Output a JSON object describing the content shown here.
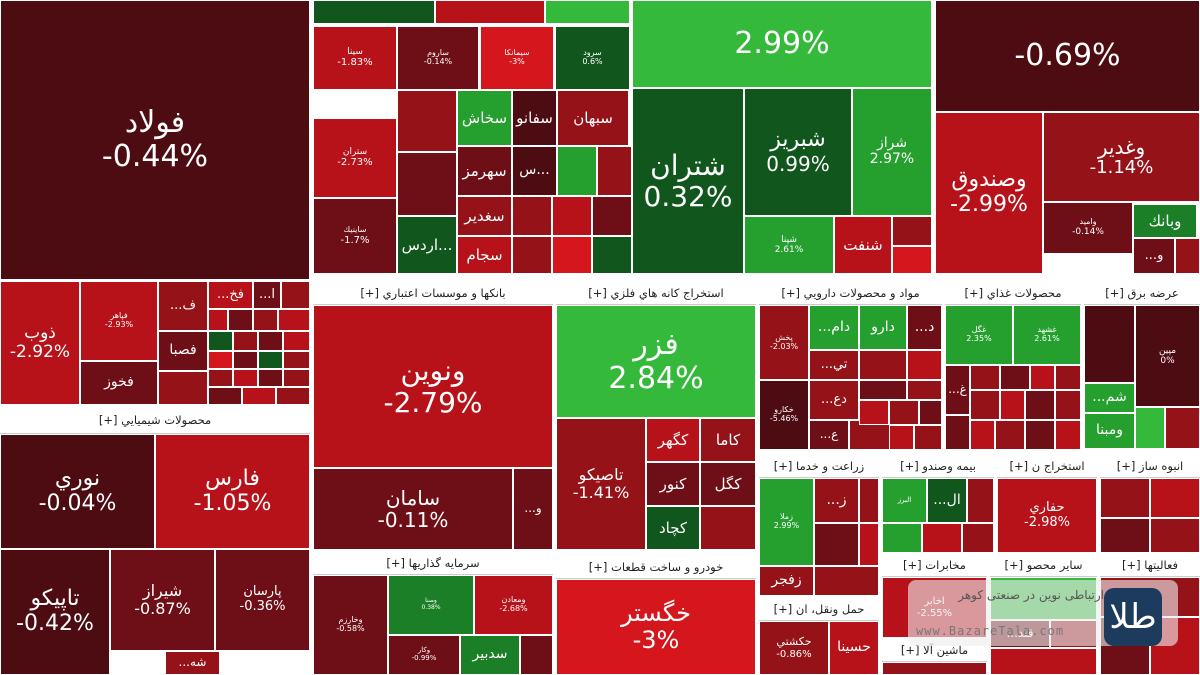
{
  "colors": {
    "DR": "#4d0c12",
    "R1": "#6e0f17",
    "R2": "#951318",
    "R3": "#b7121a",
    "R4": "#d6161d",
    "G1": "#10561d",
    "G2": "#1b7f27",
    "G3": "#25a02f",
    "G4": "#34b93a",
    "W": "#ffffff"
  },
  "chart_data": {
    "type": "treemap",
    "title": "",
    "sectors": [
      {
        "label": "محصولات شيميايي [+]"
      },
      {
        "label": "بانكها و موسسات اعتباري [+]"
      },
      {
        "label": "استخراج كانه هاي فلزي [+]"
      },
      {
        "label": "مواد و محصولات دارويي [+]"
      },
      {
        "label": "محصولات غذاي [+]"
      },
      {
        "label": "عرضه برق [+]"
      },
      {
        "label": "زراعت و خدما [+]"
      },
      {
        "label": "بيمه وصندو [+]"
      },
      {
        "label": "استخراج ن [+]"
      },
      {
        "label": "انبوه ساز [+]"
      },
      {
        "label": "سرمايه گذاريها [+]"
      },
      {
        "label": "خودرو و ساخت قطعات [+]"
      },
      {
        "label": "حمل ونقل، ان [+]"
      },
      {
        "label": "مخابرات [+]"
      },
      {
        "label": "ساير محصو [+]"
      },
      {
        "label": "فعاليتها [+]"
      },
      {
        "label": "ماشين آلا [+]"
      }
    ],
    "tiles": [
      {
        "name": "فولاد",
        "change": "-0.44%",
        "value": -0.44
      },
      {
        "name": "",
        "change": "2.99%",
        "value": 2.99
      },
      {
        "name": "",
        "change": "-0.69%",
        "value": -0.69
      },
      {
        "name": "سينا",
        "change": "-1.83%",
        "value": -1.83
      },
      {
        "name": "ساروم",
        "change": "-0.14%",
        "value": -0.14
      },
      {
        "name": "سيمانكا",
        "change": "-3%",
        "value": -3
      },
      {
        "name": "سرود",
        "change": "0.6%",
        "value": 0.6
      },
      {
        "name": "سخاش",
        "change": "",
        "value": null
      },
      {
        "name": "سفانو",
        "change": "",
        "value": null
      },
      {
        "name": "سبهان",
        "change": "",
        "value": null
      },
      {
        "name": "ستران",
        "change": "-2.73%",
        "value": -2.73
      },
      {
        "name": "سهرمز",
        "change": "",
        "value": null
      },
      {
        "name": "س...",
        "change": "",
        "value": null
      },
      {
        "name": "سغدير",
        "change": "",
        "value": null
      },
      {
        "name": "ساينيك",
        "change": "-1.7%",
        "value": -1.7
      },
      {
        "name": "اردس...",
        "change": "",
        "value": null
      },
      {
        "name": "سجام",
        "change": "",
        "value": null
      },
      {
        "name": "شتران",
        "change": "0.32%",
        "value": 0.32
      },
      {
        "name": "شبريز",
        "change": "0.99%",
        "value": 0.99
      },
      {
        "name": "شراز",
        "change": "2.97%",
        "value": 2.97
      },
      {
        "name": "شپنا",
        "change": "2.61%",
        "value": 2.61
      },
      {
        "name": "شنفت",
        "change": "",
        "value": null
      },
      {
        "name": "وصندوق",
        "change": "-2.99%",
        "value": -2.99
      },
      {
        "name": "وغدير",
        "change": "-1.14%",
        "value": -1.14
      },
      {
        "name": "وامید",
        "change": "-0.14%",
        "value": -0.14
      },
      {
        "name": "وبانك",
        "change": "",
        "value": null
      },
      {
        "name": "...و",
        "change": "",
        "value": null
      },
      {
        "name": "ذوب",
        "change": "-2.92%",
        "value": -2.92
      },
      {
        "name": "فپاهر",
        "change": "-2.93%",
        "value": -2.93
      },
      {
        "name": "...ف",
        "change": "",
        "value": null
      },
      {
        "name": "...فخ",
        "change": "",
        "value": null
      },
      {
        "name": "...ا",
        "change": "",
        "value": null
      },
      {
        "name": "فصبا",
        "change": "",
        "value": null
      },
      {
        "name": "فخوز",
        "change": "",
        "value": null
      },
      {
        "name": "نوري",
        "change": "-0.04%",
        "value": -0.04
      },
      {
        "name": "فارس",
        "change": "-1.05%",
        "value": -1.05
      },
      {
        "name": "تاپيكو",
        "change": "-0.42%",
        "value": -0.42
      },
      {
        "name": "شيراز",
        "change": "-0.87%",
        "value": -0.87
      },
      {
        "name": "پارسان",
        "change": "-0.36%",
        "value": -0.36
      },
      {
        "name": "...شه",
        "change": "",
        "value": null
      },
      {
        "name": "ونوين",
        "change": "-2.79%",
        "value": -2.79
      },
      {
        "name": "سامان",
        "change": "-0.11%",
        "value": -0.11
      },
      {
        "name": "...و",
        "change": "",
        "value": null
      },
      {
        "name": "فزر",
        "change": "2.84%",
        "value": 2.84
      },
      {
        "name": "تاصيكو",
        "change": "-1.41%",
        "value": -1.41
      },
      {
        "name": "كگهر",
        "change": "",
        "value": null
      },
      {
        "name": "كاما",
        "change": "",
        "value": null
      },
      {
        "name": "كنور",
        "change": "",
        "value": null
      },
      {
        "name": "كگل",
        "change": "",
        "value": null
      },
      {
        "name": "كچاد",
        "change": "",
        "value": null
      },
      {
        "name": "پخش",
        "change": "-2.03%",
        "value": -2.03
      },
      {
        "name": "...دام",
        "change": "",
        "value": null
      },
      {
        "name": "دارو",
        "change": "",
        "value": null
      },
      {
        "name": "...د",
        "change": "",
        "value": null
      },
      {
        "name": "...تي",
        "change": "",
        "value": null
      },
      {
        "name": "...دع",
        "change": "",
        "value": null
      },
      {
        "name": "...ع",
        "change": "",
        "value": null
      },
      {
        "name": "خكارو",
        "change": "-5.46%",
        "value": -5.46
      },
      {
        "name": "غگل",
        "change": "2.35%",
        "value": 2.35
      },
      {
        "name": "غشهد",
        "change": "2.61%",
        "value": 2.61
      },
      {
        "name": "...غ",
        "change": "",
        "value": null
      },
      {
        "name": "مپين",
        "change": "0%",
        "value": 0
      },
      {
        "name": "...شم",
        "change": "",
        "value": null
      },
      {
        "name": "ومبنا",
        "change": "",
        "value": null
      },
      {
        "name": "زملا",
        "change": "2.99%",
        "value": 2.99
      },
      {
        "name": "...ز",
        "change": "",
        "value": null
      },
      {
        "name": "زفجر",
        "change": "",
        "value": null
      },
      {
        "name": "البرز",
        "change": "",
        "value": null
      },
      {
        "name": "...ال",
        "change": "",
        "value": null
      },
      {
        "name": "حفاري",
        "change": "-2.98%",
        "value": -2.98
      },
      {
        "name": "وخارزم",
        "change": "-0.58%",
        "value": -0.58
      },
      {
        "name": "وصنا",
        "change": "0.38%",
        "value": 0.38
      },
      {
        "name": "ومعادن",
        "change": "-2.68%",
        "value": -2.68
      },
      {
        "name": "وكار",
        "change": "-0.99%",
        "value": -0.99
      },
      {
        "name": "سدبير",
        "change": "",
        "value": null
      },
      {
        "name": "خگستر",
        "change": "-3%",
        "value": -3
      },
      {
        "name": "حكشتي",
        "change": "-0.86%",
        "value": -0.86
      },
      {
        "name": "حسينا",
        "change": "",
        "value": null
      },
      {
        "name": "اخابر",
        "change": "-2.55%",
        "value": -2.55
      },
      {
        "name": "...قند",
        "change": "",
        "value": null
      }
    ]
  },
  "watermark": {
    "logo_text": "طلا",
    "text": "ارتباطی نوین در صنعتی کوهر",
    "url": "www.BazareTala.com"
  }
}
